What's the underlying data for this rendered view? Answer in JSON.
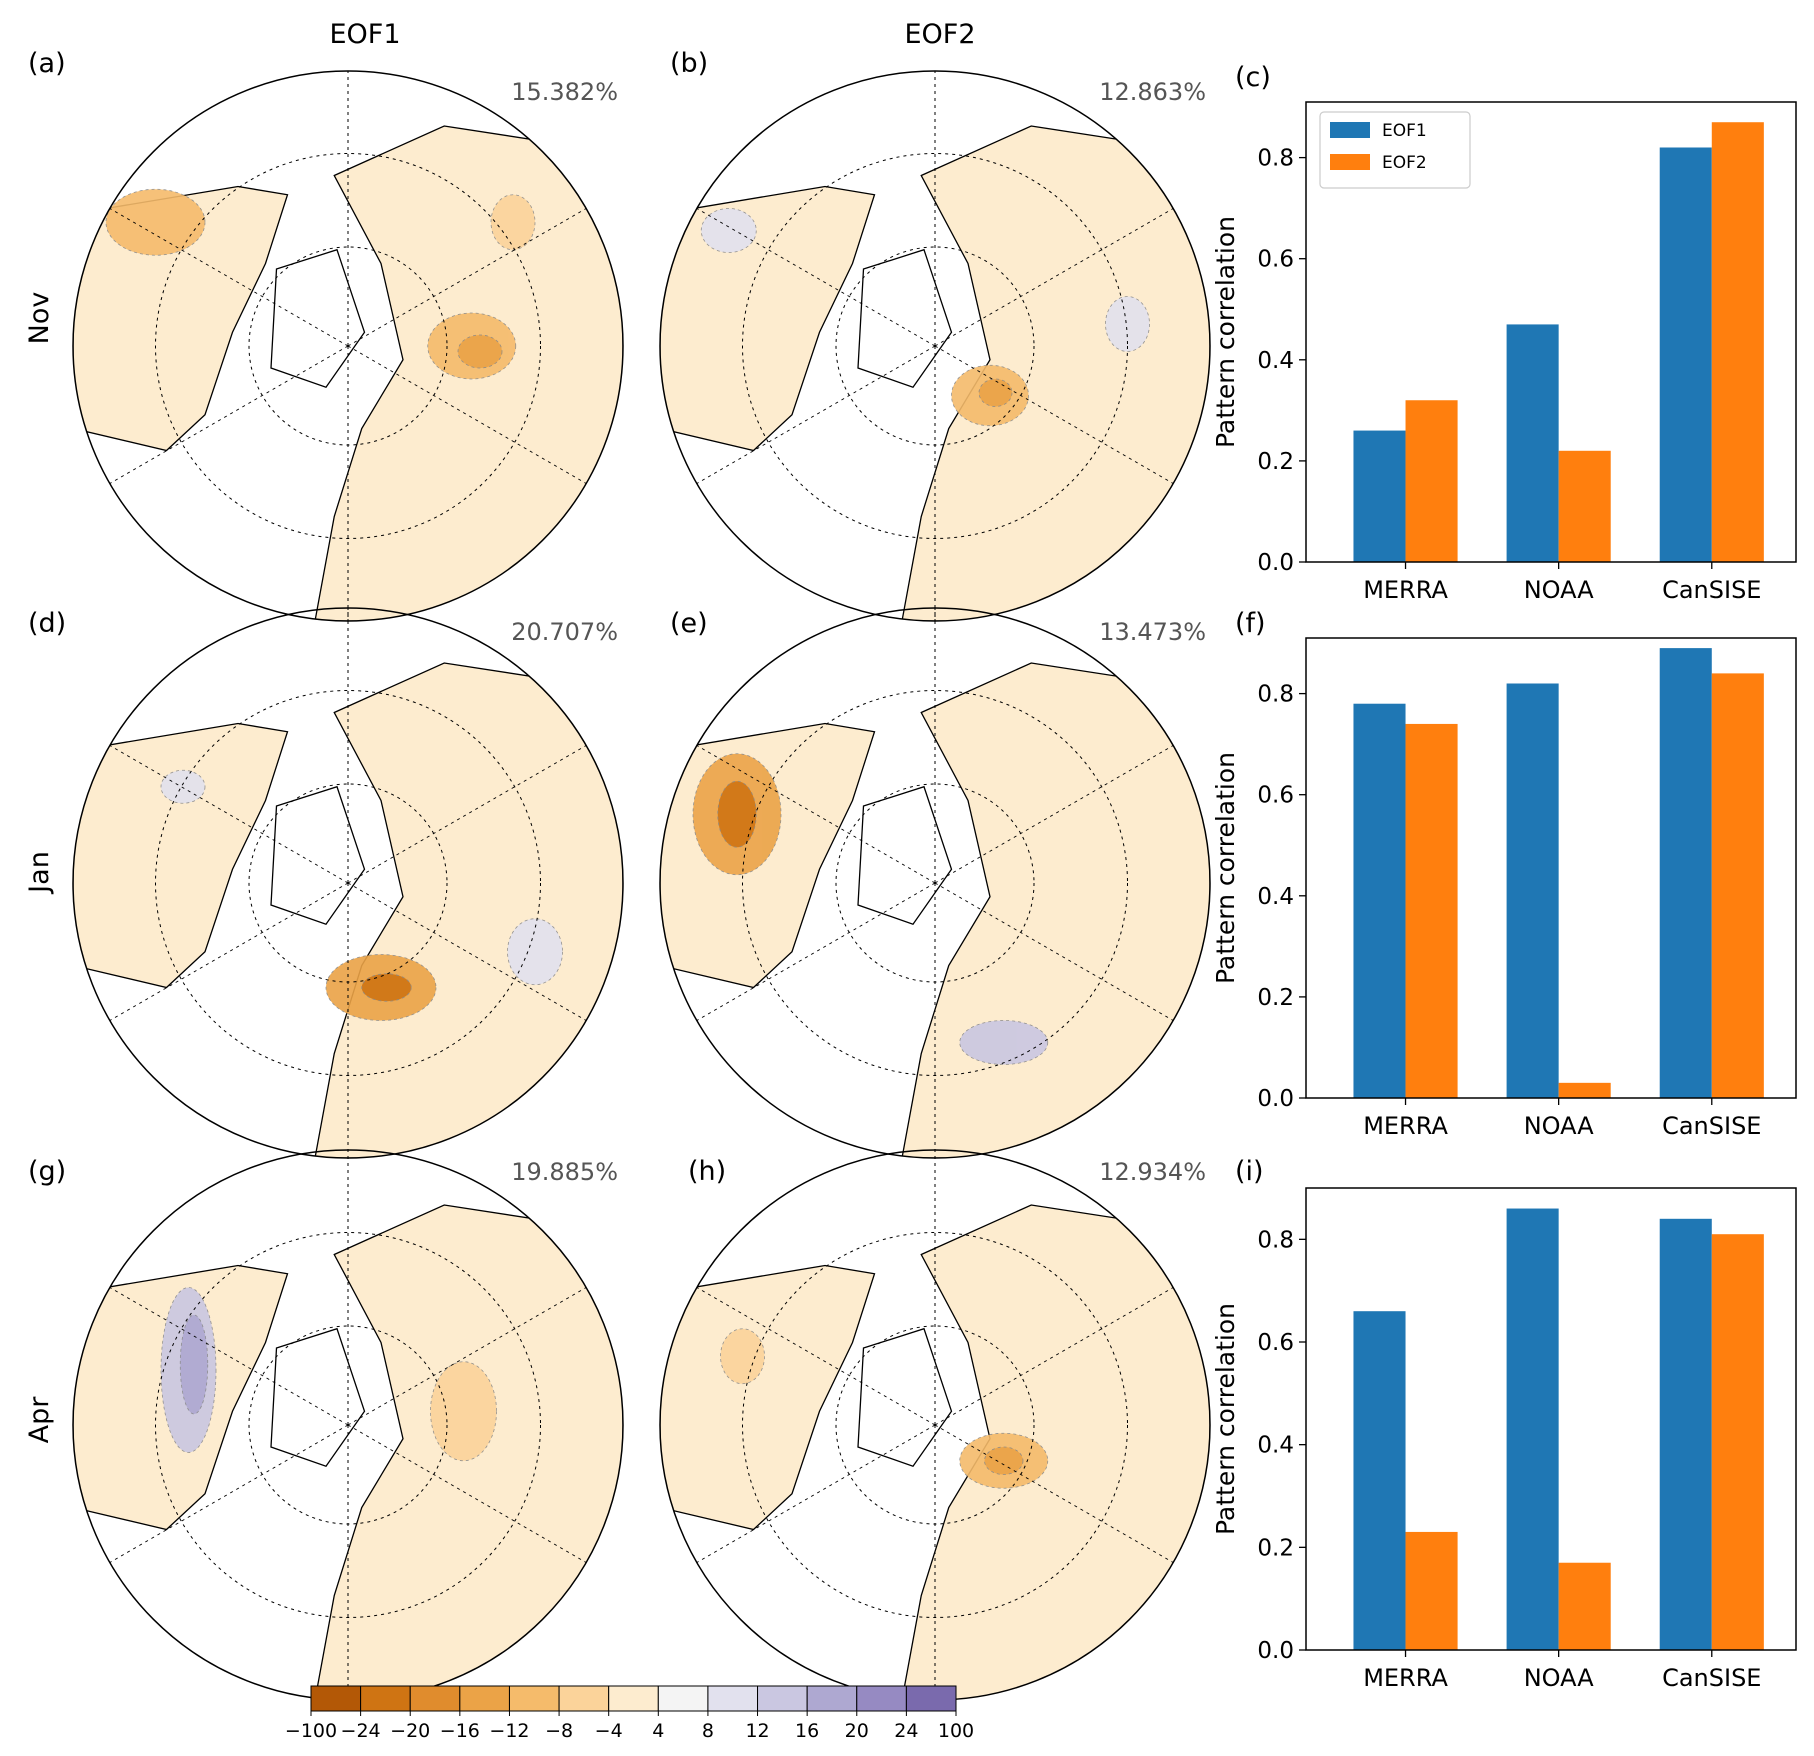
{
  "columns": [
    "EOF1",
    "EOF2"
  ],
  "rows": [
    "Nov",
    "Jan",
    "Apr"
  ],
  "panels": {
    "a": {
      "label": "(a)",
      "percent": "15.382%"
    },
    "b": {
      "label": "(b)",
      "percent": "12.863%"
    },
    "c": {
      "label": "(c)"
    },
    "d": {
      "label": "(d)",
      "percent": "20.707%"
    },
    "e": {
      "label": "(e)",
      "percent": "13.473%"
    },
    "f": {
      "label": "(f)"
    },
    "g": {
      "label": "(g)",
      "percent": "19.885%"
    },
    "h": {
      "label": "(h)",
      "percent": "12.934%"
    },
    "i": {
      "label": "(i)"
    }
  },
  "colorbar": {
    "ticks": [
      "−100",
      "−24",
      "−20",
      "−16",
      "−12",
      "−8",
      "−4",
      "4",
      "8",
      "12",
      "16",
      "20",
      "24",
      "100"
    ],
    "colors": [
      "#b35806",
      "#cf7413",
      "#e08c2d",
      "#eba347",
      "#f5bb6b",
      "#fbd39a",
      "#fdeccf",
      "#f4f4f4",
      "#e2e1ee",
      "#cac7e1",
      "#aea8d1",
      "#968ac2",
      "#7a6aad"
    ]
  },
  "colors": {
    "EOF1": "#1f77b4",
    "EOF2": "#ff7f0e",
    "land_fill": "#fdeccf"
  },
  "chart_data": [
    {
      "panel": "c",
      "type": "bar",
      "categories": [
        "MERRA",
        "NOAA",
        "CanSISE"
      ],
      "series": [
        {
          "name": "EOF1",
          "values": [
            0.26,
            0.47,
            0.82
          ]
        },
        {
          "name": "EOF2",
          "values": [
            0.32,
            0.22,
            0.87
          ]
        }
      ],
      "ylabel": "Pattern correlation",
      "ylim": [
        0,
        0.91
      ],
      "yticks": [
        "0.0",
        "0.2",
        "0.4",
        "0.6",
        "0.8"
      ],
      "legend": "top-left"
    },
    {
      "panel": "f",
      "type": "bar",
      "categories": [
        "MERRA",
        "NOAA",
        "CanSISE"
      ],
      "series": [
        {
          "name": "EOF1",
          "values": [
            0.78,
            0.82,
            0.89
          ]
        },
        {
          "name": "EOF2",
          "values": [
            0.74,
            0.03,
            0.84
          ]
        }
      ],
      "ylabel": "Pattern correlation",
      "ylim": [
        0,
        0.91
      ],
      "yticks": [
        "0.0",
        "0.2",
        "0.4",
        "0.6",
        "0.8"
      ]
    },
    {
      "panel": "i",
      "type": "bar",
      "categories": [
        "MERRA",
        "NOAA",
        "CanSISE"
      ],
      "series": [
        {
          "name": "EOF1",
          "values": [
            0.66,
            0.86,
            0.84
          ]
        },
        {
          "name": "EOF2",
          "values": [
            0.23,
            0.17,
            0.81
          ]
        }
      ],
      "ylabel": "Pattern correlation",
      "ylim": [
        0,
        0.9
      ],
      "yticks": [
        "0.0",
        "0.2",
        "0.4",
        "0.6",
        "0.8"
      ]
    }
  ]
}
